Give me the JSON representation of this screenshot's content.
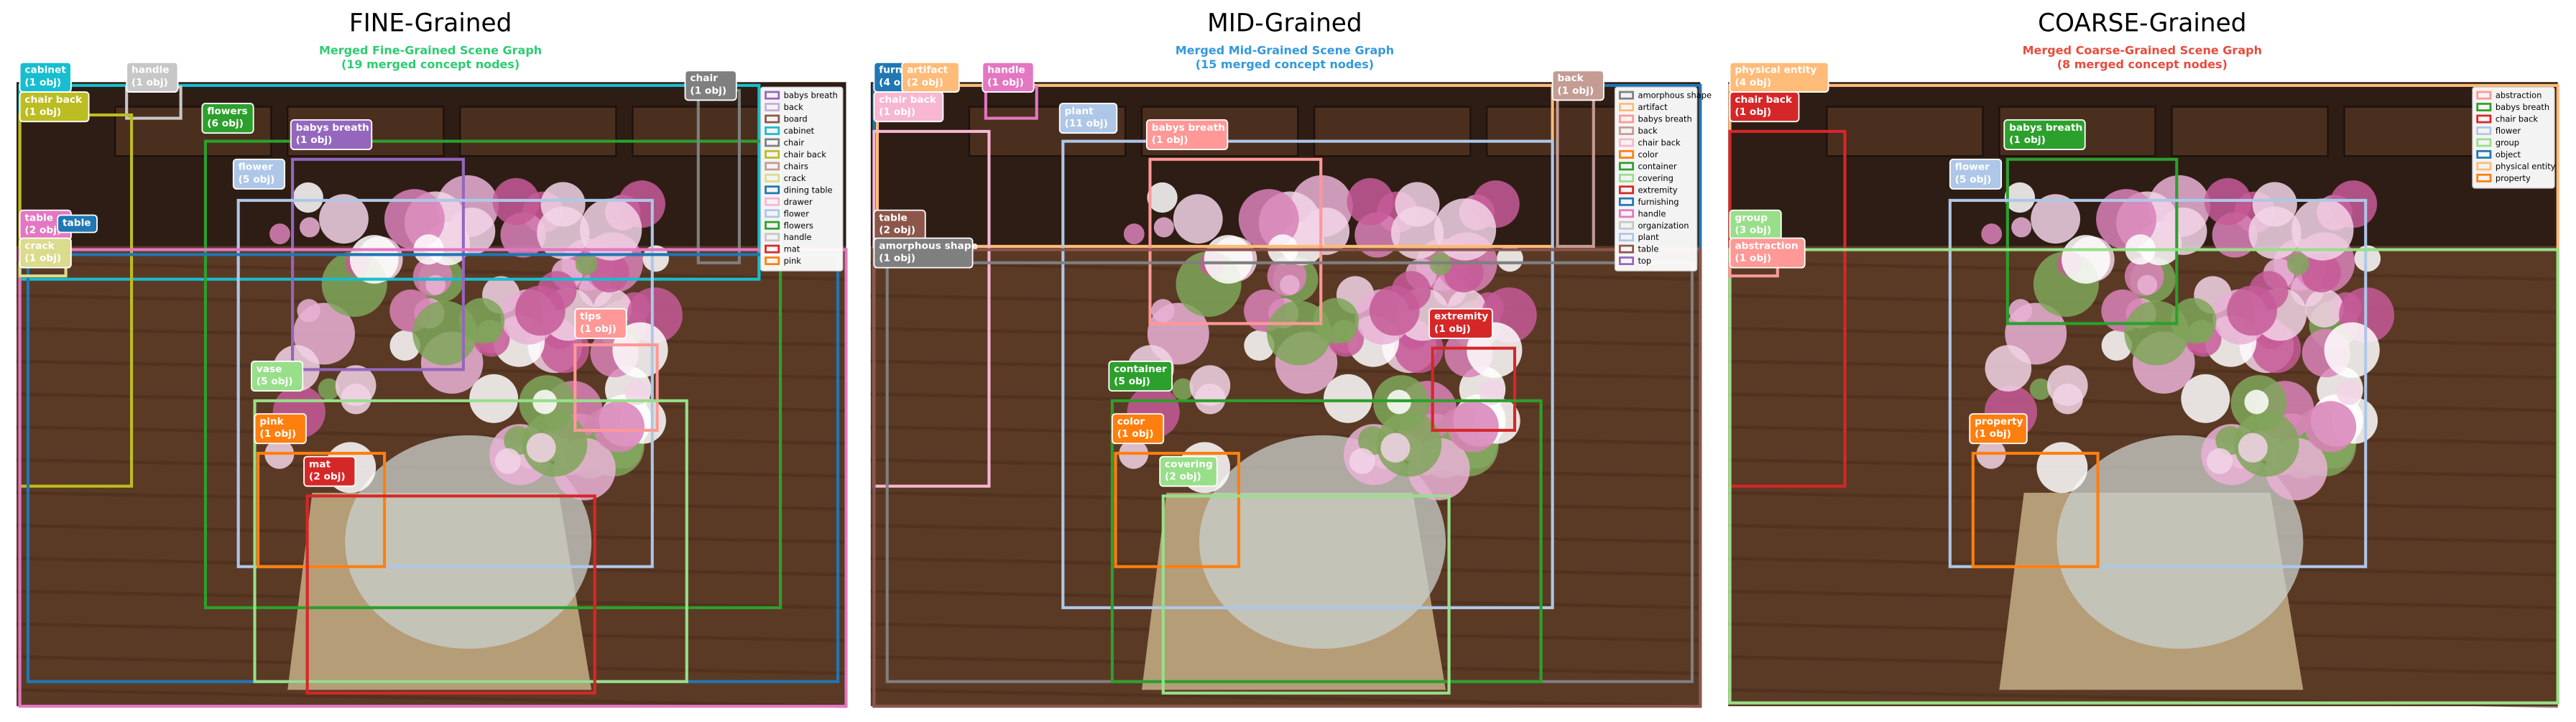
{
  "panels": [
    {
      "title": "FINE-Grained",
      "subtitle": [
        "Merged Fine-Grained Scene Graph",
        "(19 merged concept nodes)"
      ],
      "subtitle_color": "#2ecc71",
      "labels": [
        {
          "name": "cabinet",
          "count": "(1 obj)",
          "color": "#17becf"
        },
        {
          "name": "handle",
          "count": "(1 obj)",
          "color": "#c7c7c7"
        },
        {
          "name": "chair back",
          "count": "(1 obj)",
          "color": "#bcbd22"
        },
        {
          "name": "flowers",
          "count": "(6 obj)",
          "color": "#2ca02c"
        },
        {
          "name": "babys breath",
          "count": "(1 obj)",
          "color": "#9467bd"
        },
        {
          "name": "chair",
          "count": "(1 obj)",
          "color": "#7f7f7f"
        },
        {
          "name": "flower",
          "count": "(5 obj)",
          "color": "#aec7e8"
        },
        {
          "name": "table",
          "count": "(2 obj)",
          "color": "#e377c2"
        },
        {
          "name": "table",
          "color": "#1f77b4"
        },
        {
          "name": "crack",
          "count": "(1 obj)",
          "color": "#dbdb8d"
        },
        {
          "name": "tips",
          "count": "(1 obj)",
          "color": "#ff9896"
        },
        {
          "name": "vase",
          "count": "(5 obj)",
          "color": "#98df8a"
        },
        {
          "name": "pink",
          "count": "(1 obj)",
          "color": "#ff7f0e"
        },
        {
          "name": "mat",
          "count": "(2 obj)",
          "color": "#d62728"
        }
      ],
      "legend": [
        {
          "name": "babys breath",
          "color": "#9467bd"
        },
        {
          "name": "back",
          "color": "#c5b0d5"
        },
        {
          "name": "board",
          "color": "#8c564b"
        },
        {
          "name": "cabinet",
          "color": "#17becf"
        },
        {
          "name": "chair",
          "color": "#7f7f7f"
        },
        {
          "name": "chair back",
          "color": "#bcbd22"
        },
        {
          "name": "chairs",
          "color": "#c49c94"
        },
        {
          "name": "crack",
          "color": "#dbdb8d"
        },
        {
          "name": "dining table",
          "color": "#1f77b4"
        },
        {
          "name": "drawer",
          "color": "#f7b6d2"
        },
        {
          "name": "flower",
          "color": "#aec7e8"
        },
        {
          "name": "flowers",
          "color": "#2ca02c"
        },
        {
          "name": "handle",
          "color": "#c7c7c7"
        },
        {
          "name": "mat",
          "color": "#d62728"
        },
        {
          "name": "pink",
          "color": "#ff7f0e"
        }
      ]
    },
    {
      "title": "MID-Grained",
      "subtitle": [
        "Merged Mid-Grained Scene Graph",
        "(15 merged concept nodes)"
      ],
      "subtitle_color": "#3498db",
      "labels": [
        {
          "name": "furn",
          "count": "(4 o",
          "color": "#1f77b4"
        },
        {
          "name": "artifact",
          "count": "(2 obj)",
          "color": "#ffbb78"
        },
        {
          "name": "handle",
          "count": "(1 obj)",
          "color": "#e377c2"
        },
        {
          "name": "chair back",
          "count": "(1 obj)",
          "color": "#f7b6d2"
        },
        {
          "name": "plant",
          "count": "(11 obj)",
          "color": "#aec7e8"
        },
        {
          "name": "babys breath",
          "count": "(1 obj)",
          "color": "#ff9896"
        },
        {
          "name": "back",
          "count": "(1 obj)",
          "color": "#c49c94"
        },
        {
          "name": "table",
          "count": "(2 obj)",
          "color": "#8c564b"
        },
        {
          "name": "amorphous shape",
          "count": "(1 obj)",
          "color": "#7f7f7f"
        },
        {
          "name": "extremity",
          "count": "(1 obj)",
          "color": "#d62728"
        },
        {
          "name": "container",
          "count": "(5 obj)",
          "color": "#2ca02c"
        },
        {
          "name": "color",
          "count": "(1 obj)",
          "color": "#ff7f0e"
        },
        {
          "name": "covering",
          "count": "(2 obj)",
          "color": "#98df8a"
        }
      ],
      "legend": [
        {
          "name": "amorphous shape",
          "color": "#7f7f7f"
        },
        {
          "name": "artifact",
          "color": "#ffbb78"
        },
        {
          "name": "babys breath",
          "color": "#ff9896"
        },
        {
          "name": "back",
          "color": "#c49c94"
        },
        {
          "name": "chair back",
          "color": "#f7b6d2"
        },
        {
          "name": "color",
          "color": "#ff7f0e"
        },
        {
          "name": "container",
          "color": "#2ca02c"
        },
        {
          "name": "covering",
          "color": "#98df8a"
        },
        {
          "name": "extremity",
          "color": "#d62728"
        },
        {
          "name": "furnishing",
          "color": "#1f77b4"
        },
        {
          "name": "handle",
          "color": "#e377c2"
        },
        {
          "name": "organization",
          "color": "#c7c7c7"
        },
        {
          "name": "plant",
          "color": "#aec7e8"
        },
        {
          "name": "table",
          "color": "#8c564b"
        },
        {
          "name": "top",
          "color": "#9467bd"
        }
      ]
    },
    {
      "title": "COARSE-Grained",
      "subtitle": [
        "Merged Coarse-Grained Scene Graph",
        "(8 merged concept nodes)"
      ],
      "subtitle_color": "#e74c3c",
      "labels": [
        {
          "name": "physical entity",
          "count": "(4 obj)",
          "color": "#ffbb78"
        },
        {
          "name": "chair back",
          "count": "(1 obj)",
          "color": "#d62728"
        },
        {
          "name": "babys breath",
          "count": "(1 obj)",
          "color": "#2ca02c"
        },
        {
          "name": "flower",
          "count": "(5 obj)",
          "color": "#aec7e8"
        },
        {
          "name": "group",
          "count": "(3 obj)",
          "color": "#98df8a"
        },
        {
          "name": "abstraction",
          "count": "(1 obj)",
          "color": "#ff9896"
        },
        {
          "name": "property",
          "count": "(1 obj)",
          "color": "#ff7f0e"
        }
      ],
      "legend": [
        {
          "name": "abstraction",
          "color": "#ff9896"
        },
        {
          "name": "babys breath",
          "color": "#2ca02c"
        },
        {
          "name": "chair back",
          "color": "#d62728"
        },
        {
          "name": "flower",
          "color": "#aec7e8"
        },
        {
          "name": "group",
          "color": "#98df8a"
        },
        {
          "name": "object",
          "color": "#1f77b4"
        },
        {
          "name": "physical entity",
          "color": "#ffbb78"
        },
        {
          "name": "property",
          "color": "#ff7f0e"
        }
      ]
    }
  ]
}
